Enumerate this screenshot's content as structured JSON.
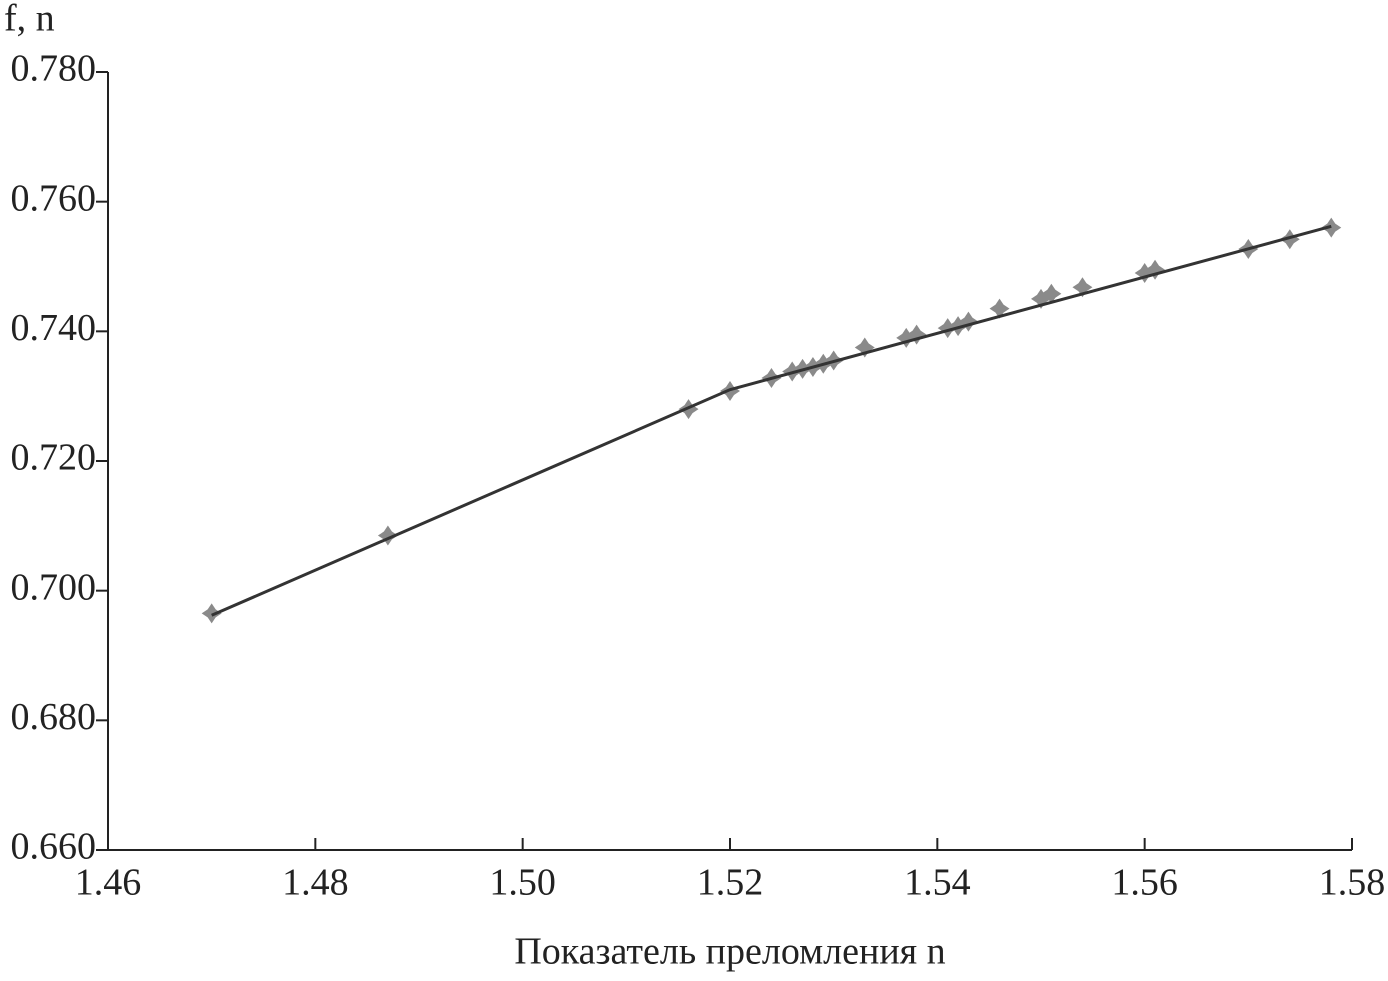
{
  "chart_data": {
    "type": "scatter",
    "ylabel": "f, n",
    "xlabel": "Показатель преломления n",
    "xlim": [
      1.46,
      1.58
    ],
    "xticks": [
      1.46,
      1.48,
      {
        "value": 1.5,
        "label": "1.50"
      },
      1.52,
      1.54,
      1.56,
      1.58
    ],
    "ylim": [
      0.66,
      0.78
    ],
    "yticks": [
      {
        "value": 0.66,
        "label": "0.660"
      },
      {
        "value": 0.68,
        "label": "0.680"
      },
      {
        "value": 0.7,
        "label": "0.700"
      },
      {
        "value": 0.72,
        "label": "0.720"
      },
      {
        "value": 0.74,
        "label": "0.740"
      },
      {
        "value": 0.76,
        "label": "0.760"
      },
      {
        "value": 0.78,
        "label": "0.780"
      }
    ],
    "grid": false,
    "series": [
      {
        "color": "#8a8a8a",
        "x": [
          1.47,
          1.487,
          1.516,
          1.52,
          1.524,
          1.526,
          1.527,
          1.528,
          1.529,
          1.53,
          1.533,
          1.537,
          1.538,
          1.541,
          1.542,
          1.543,
          1.546,
          1.55,
          1.551,
          1.554,
          1.56,
          1.561,
          1.57,
          1.574,
          1.578
        ],
        "values": [
          0.6965,
          0.7085,
          0.728,
          0.7308,
          0.7328,
          0.7338,
          0.7342,
          0.7345,
          0.735,
          0.7355,
          0.7375,
          0.739,
          0.7395,
          0.7405,
          0.7408,
          0.7415,
          0.7435,
          0.745,
          0.7458,
          0.7468,
          0.749,
          0.7495,
          0.7527,
          0.7542,
          0.756
        ]
      },
      {
        "color": "#333333",
        "line": true,
        "x": [
          1.47,
          1.52,
          1.578
        ],
        "values": [
          0.6962,
          0.731,
          0.7562
        ]
      }
    ]
  }
}
